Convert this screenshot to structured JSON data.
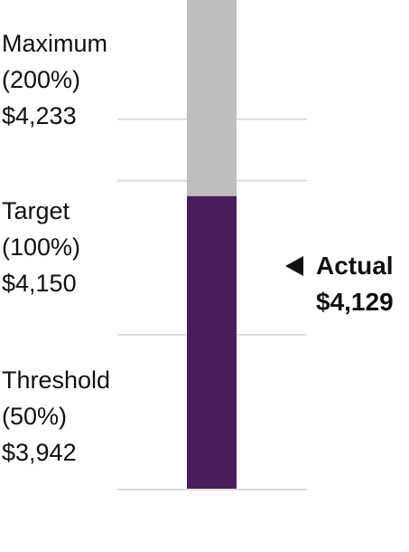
{
  "chart_data": {
    "type": "bar",
    "orientation": "vertical",
    "ylim": [
      3734,
      4394
    ],
    "markers": [
      {
        "name": "Maximum",
        "pct": "(200%)",
        "value_label": "$4,233",
        "value": 4233
      },
      {
        "name": "Target",
        "pct": "(100%)",
        "value_label": "$4,150",
        "value": 4150
      },
      {
        "name": "Threshold",
        "pct": "(50%)",
        "value_label": "$3,942",
        "value": 3942
      }
    ],
    "actual": {
      "label": "Actual",
      "value_label": "$4,129",
      "value": 4129
    },
    "colors": {
      "bar_fill": "#4a1d5c",
      "bar_track": "#bebebf",
      "gridline": "#dcdcdc",
      "text": "#111111"
    }
  }
}
